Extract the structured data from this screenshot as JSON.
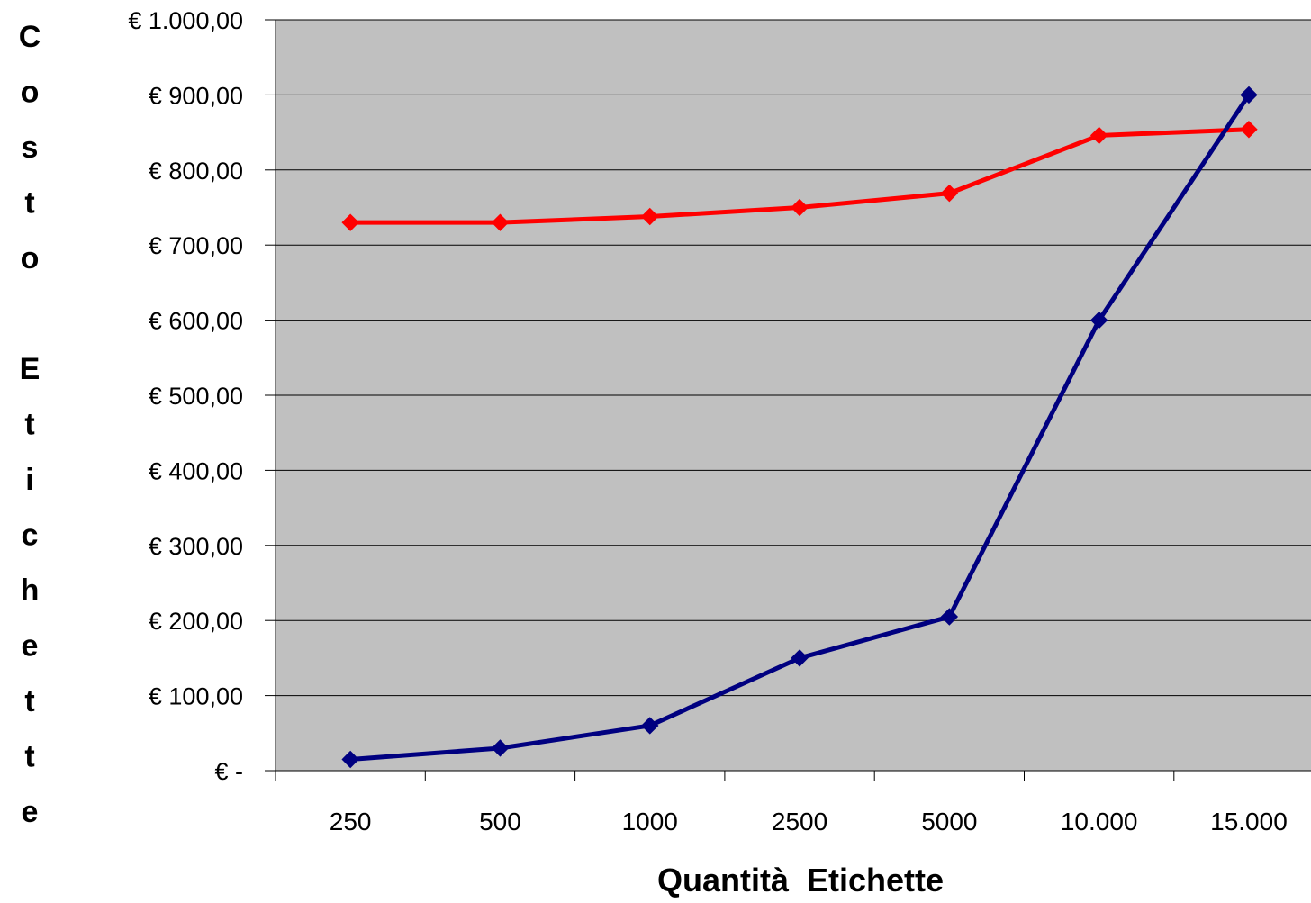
{
  "chart_data": {
    "type": "line",
    "title": "",
    "xlabel": "Quantità  Etichette",
    "ylabel": "Costo Etichette",
    "categories": [
      "250",
      "500",
      "1000",
      "2500",
      "5000",
      "10.000",
      "15.000"
    ],
    "ylim": [
      0,
      1000
    ],
    "yticks": [
      0,
      100,
      200,
      300,
      400,
      500,
      600,
      700,
      800,
      900,
      1000
    ],
    "ytick_labels": [
      "€ -",
      "€ 100,00",
      "€ 200,00",
      "€ 300,00",
      "€ 400,00",
      "€ 500,00",
      "€ 600,00",
      "€ 700,00",
      "€ 800,00",
      "€ 900,00",
      "€ 1.000,00"
    ],
    "grid": true,
    "legend": "none",
    "plot_background": "#c0c0c0",
    "series": [
      {
        "color": "#ff0000",
        "values": [
          730,
          730,
          738,
          750,
          769,
          846,
          854
        ]
      },
      {
        "color": "#000080",
        "values": [
          15,
          30,
          60,
          150,
          205,
          600,
          900
        ]
      }
    ]
  }
}
